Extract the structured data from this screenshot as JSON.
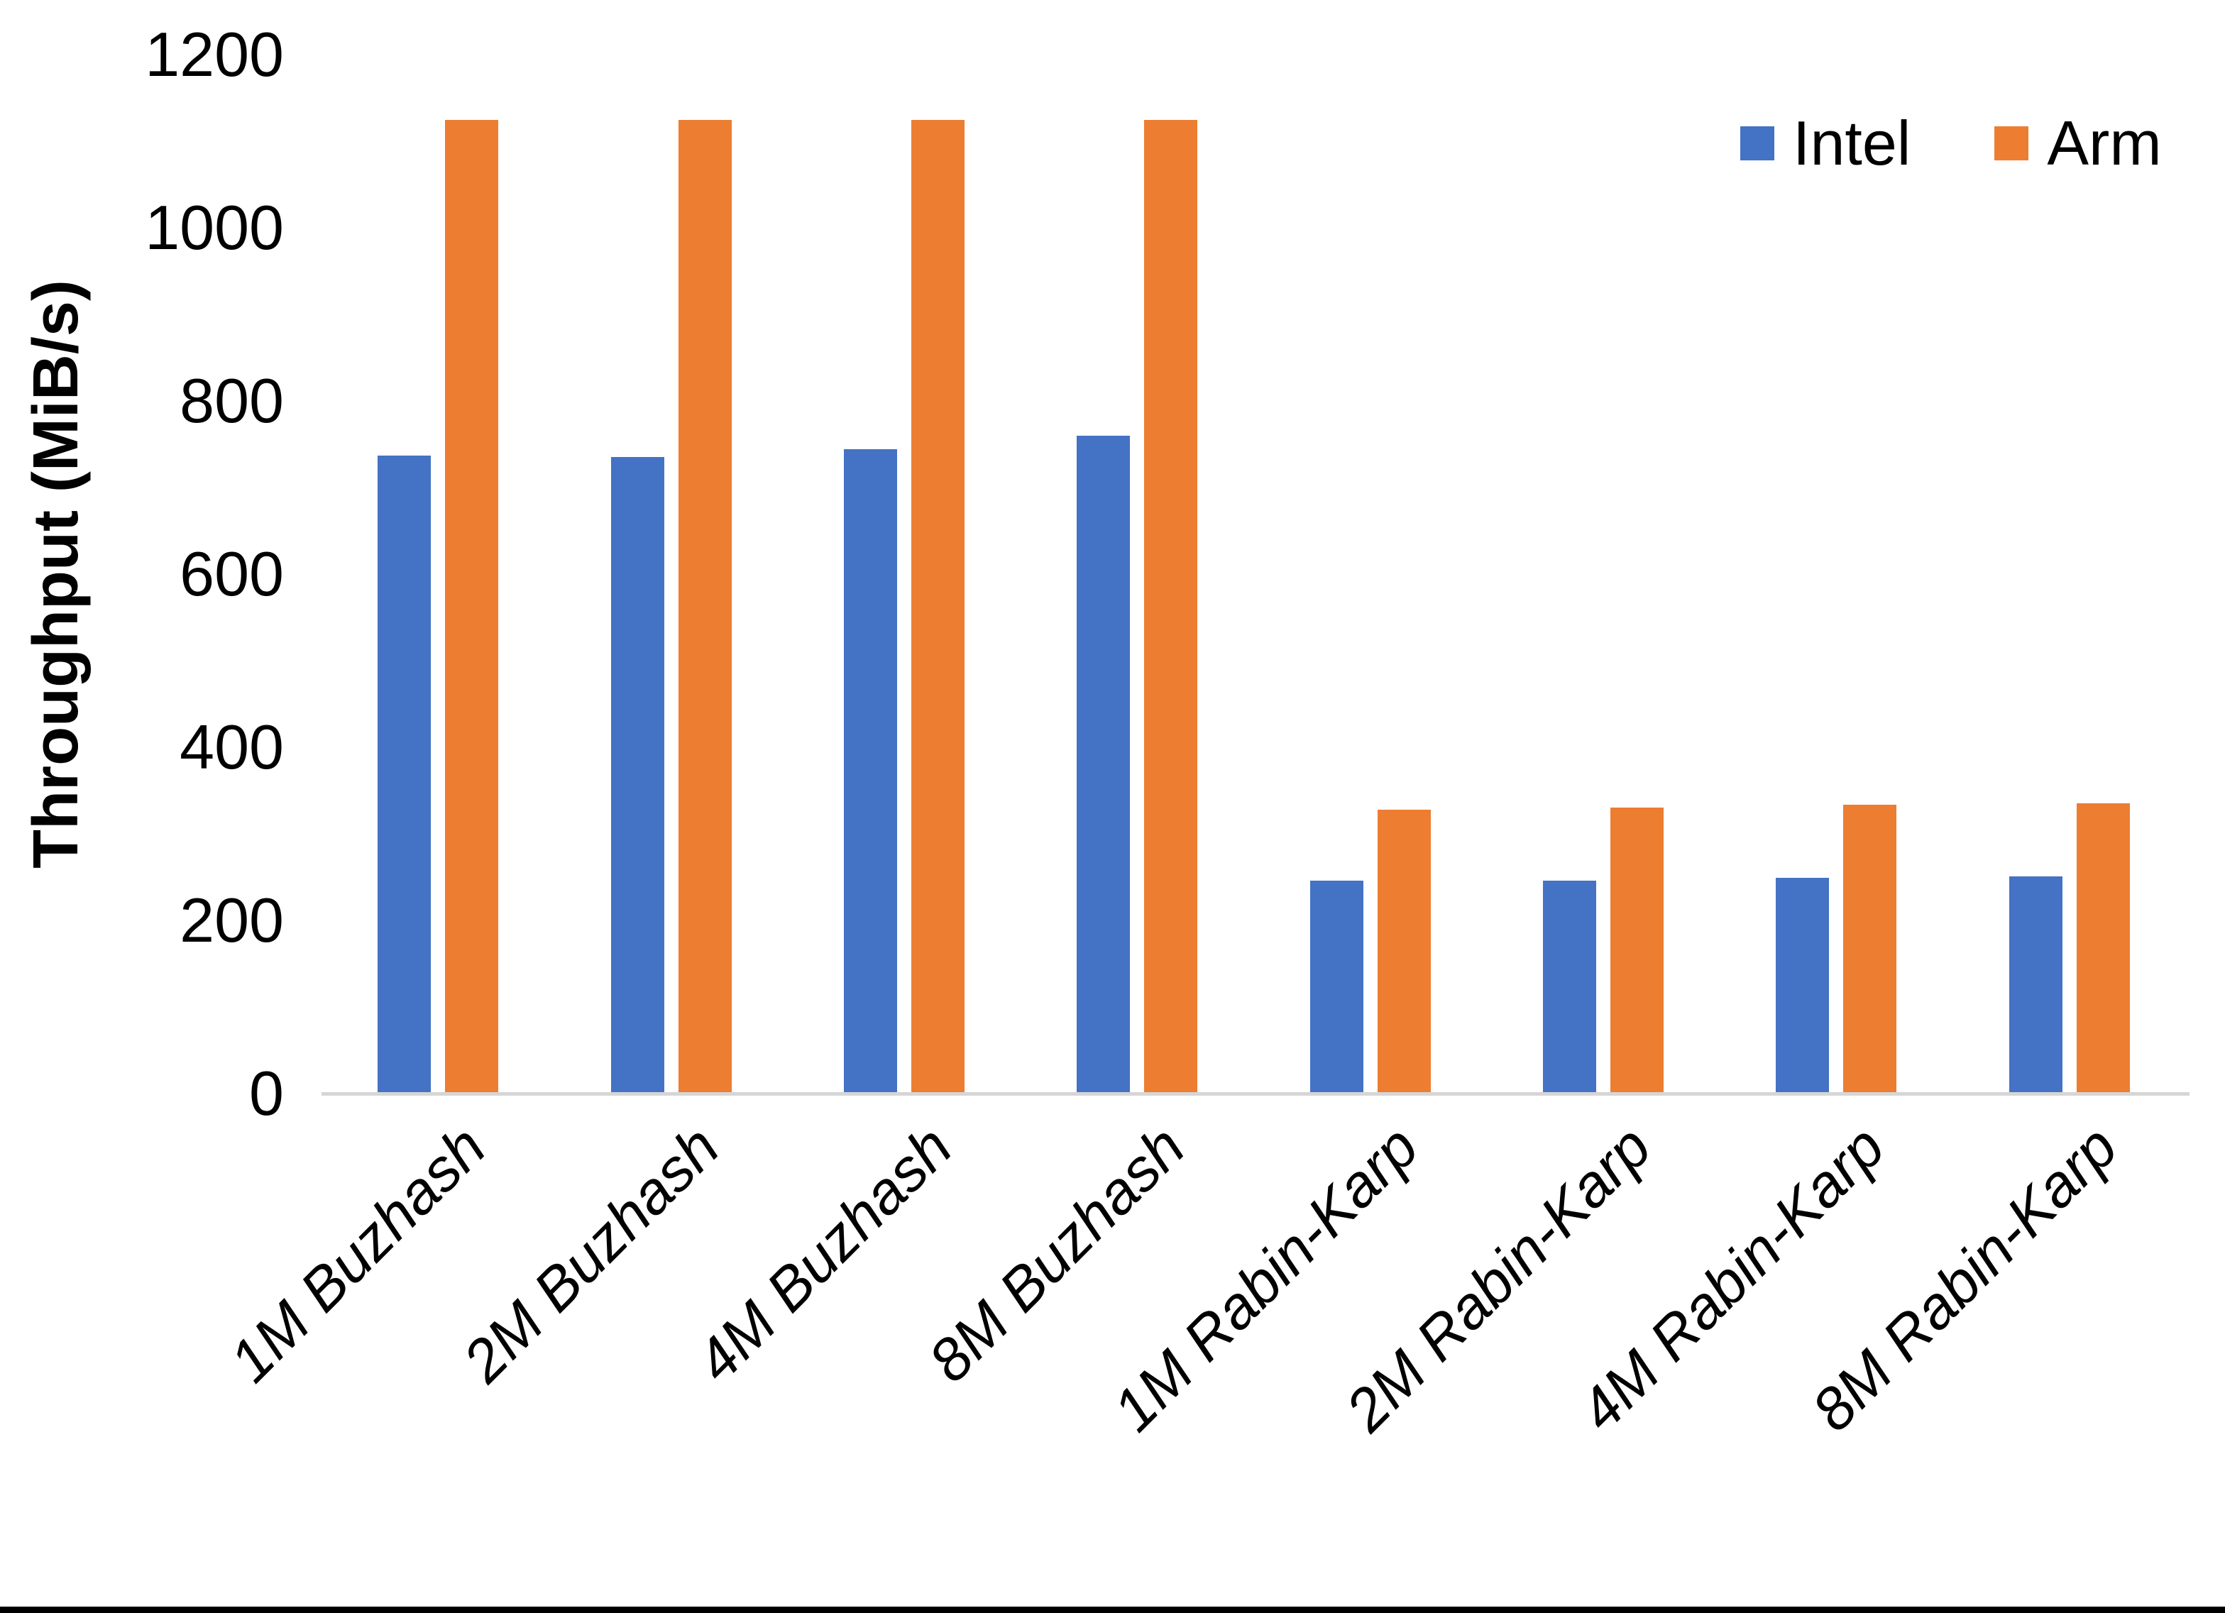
{
  "page": {
    "background": "#FFFFFF",
    "bottom_border_color": "#000000"
  },
  "chart_data": {
    "type": "bar",
    "title": "",
    "xlabel": "",
    "ylabel": "Throughput (MiB/s)",
    "ylim": [
      0,
      1200
    ],
    "yticks": [
      0,
      200,
      400,
      600,
      800,
      1000,
      1200
    ],
    "grid": false,
    "axis_line_color": "#D6D6D6",
    "legend_position": "top-right",
    "categories": [
      "1M Buzhash",
      "2M Buzhash",
      "4M Buzhash",
      "8M Buzhash",
      "1M Rabin-Karp",
      "2M Rabin-Karp",
      "4M Rabin-Karp",
      "8M Rabin-Karp"
    ],
    "series": [
      {
        "name": "Intel",
        "color": "#4472C4",
        "values": [
          737,
          735,
          744,
          760,
          246,
          246,
          249,
          251
        ]
      },
      {
        "name": "Arm",
        "color": "#ED7D31",
        "values": [
          1125,
          1125,
          1125,
          1125,
          328,
          330,
          334,
          335
        ]
      }
    ]
  }
}
